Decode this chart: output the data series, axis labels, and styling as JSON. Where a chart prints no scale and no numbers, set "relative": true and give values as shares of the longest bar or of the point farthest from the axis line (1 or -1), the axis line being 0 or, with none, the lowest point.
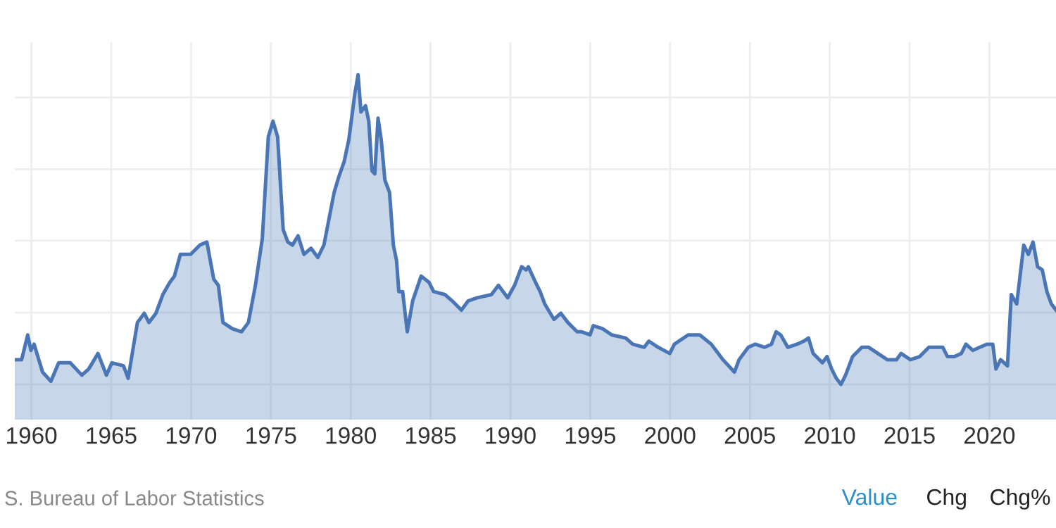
{
  "chart_data": {
    "type": "area",
    "relative": true,
    "grid": true,
    "legend": false,
    "marker": "none",
    "line_style": "solid",
    "xlim": [
      1958.96,
      2024.17
    ],
    "xticks": [
      1960,
      1965,
      1970,
      1975,
      1980,
      1985,
      1990,
      1995,
      2000,
      2005,
      2010,
      2015,
      2020
    ],
    "annotations": [
      "S. Bureau of Labor Statistics",
      "Value",
      "Chg",
      "Chg%"
    ],
    "series": [
      {
        "color": "#4a76b6",
        "x": [
          1958.96,
          1959.39,
          1959.77,
          1959.97,
          1960.17,
          1960.7,
          1961.22,
          1961.71,
          1962.43,
          1963.16,
          1963.59,
          1964.17,
          1964.7,
          1965.04,
          1965.77,
          1966.06,
          1966.64,
          1967.07,
          1967.36,
          1967.8,
          1968.23,
          1968.67,
          1968.96,
          1969.33,
          1969.97,
          1970.55,
          1970.99,
          1971.42,
          1971.71,
          1972.0,
          1972.58,
          1973.16,
          1973.59,
          1974.03,
          1974.46,
          1974.84,
          1975.13,
          1975.42,
          1975.77,
          1976.06,
          1976.35,
          1976.7,
          1977.07,
          1977.51,
          1977.94,
          1978.32,
          1978.96,
          1979.25,
          1979.59,
          1979.88,
          1980.26,
          1980.46,
          1980.64,
          1980.93,
          1981.13,
          1981.33,
          1981.51,
          1981.71,
          1981.91,
          1982.14,
          1982.43,
          1982.67,
          1982.87,
          1983.01,
          1983.25,
          1983.54,
          1983.88,
          1984.41,
          1984.9,
          1985.19,
          1985.91,
          1986.35,
          1986.93,
          1987.36,
          1987.94,
          1988.81,
          1989.25,
          1989.83,
          1990.26,
          1990.7,
          1990.99,
          1991.13,
          1991.57,
          1991.86,
          1992.15,
          1992.73,
          1993.16,
          1993.6,
          1994.18,
          1994.47,
          1994.99,
          1995.19,
          1995.77,
          1996.35,
          1997.22,
          1997.66,
          1998.38,
          1998.67,
          1999.25,
          1999.98,
          2000.27,
          2001.13,
          2001.86,
          2002.58,
          2003.31,
          2004.03,
          2004.32,
          2004.9,
          2005.34,
          2005.92,
          2006.35,
          2006.64,
          2006.93,
          2007.37,
          2007.95,
          2008.38,
          2008.67,
          2008.96,
          2009.54,
          2009.83,
          2010.12,
          2010.41,
          2010.7,
          2010.99,
          2011.43,
          2012.01,
          2012.44,
          2013.02,
          2013.6,
          2014.18,
          2014.47,
          2015.05,
          2015.63,
          2016.21,
          2016.79,
          2017.08,
          2017.37,
          2017.8,
          2018.24,
          2018.53,
          2018.96,
          2019.4,
          2019.83,
          2020.21,
          2020.41,
          2020.7,
          2021.13,
          2021.37,
          2021.71,
          2022.15,
          2022.44,
          2022.73,
          2023.02,
          2023.31,
          2023.6,
          2023.88,
          2024.17
        ],
        "values": [
          0.08,
          0.08,
          0.16,
          0.11,
          0.13,
          0.04,
          0.01,
          0.07,
          0.07,
          0.03,
          0.05,
          0.1,
          0.03,
          0.07,
          0.06,
          0.02,
          0.2,
          0.23,
          0.2,
          0.23,
          0.29,
          0.33,
          0.35,
          0.42,
          0.42,
          0.45,
          0.46,
          0.34,
          0.32,
          0.2,
          0.18,
          0.17,
          0.2,
          0.32,
          0.47,
          0.8,
          0.85,
          0.8,
          0.5,
          0.46,
          0.45,
          0.48,
          0.42,
          0.44,
          0.41,
          0.45,
          0.62,
          0.67,
          0.72,
          0.79,
          0.94,
          1.0,
          0.88,
          0.9,
          0.85,
          0.69,
          0.68,
          0.86,
          0.79,
          0.66,
          0.62,
          0.45,
          0.4,
          0.3,
          0.3,
          0.17,
          0.27,
          0.35,
          0.33,
          0.3,
          0.29,
          0.27,
          0.24,
          0.27,
          0.28,
          0.29,
          0.32,
          0.28,
          0.32,
          0.38,
          0.37,
          0.38,
          0.33,
          0.3,
          0.26,
          0.21,
          0.23,
          0.2,
          0.17,
          0.17,
          0.16,
          0.19,
          0.18,
          0.16,
          0.15,
          0.13,
          0.12,
          0.14,
          0.12,
          0.1,
          0.13,
          0.16,
          0.16,
          0.13,
          0.08,
          0.04,
          0.08,
          0.12,
          0.13,
          0.12,
          0.13,
          0.17,
          0.16,
          0.12,
          0.13,
          0.14,
          0.15,
          0.1,
          0.07,
          0.09,
          0.05,
          0.02,
          0.0,
          0.03,
          0.09,
          0.12,
          0.12,
          0.1,
          0.08,
          0.08,
          0.1,
          0.08,
          0.09,
          0.12,
          0.12,
          0.12,
          0.09,
          0.09,
          0.1,
          0.13,
          0.11,
          0.12,
          0.13,
          0.13,
          0.05,
          0.08,
          0.06,
          0.29,
          0.26,
          0.45,
          0.42,
          0.46,
          0.38,
          0.37,
          0.3,
          0.26,
          0.24
        ]
      }
    ]
  }
}
